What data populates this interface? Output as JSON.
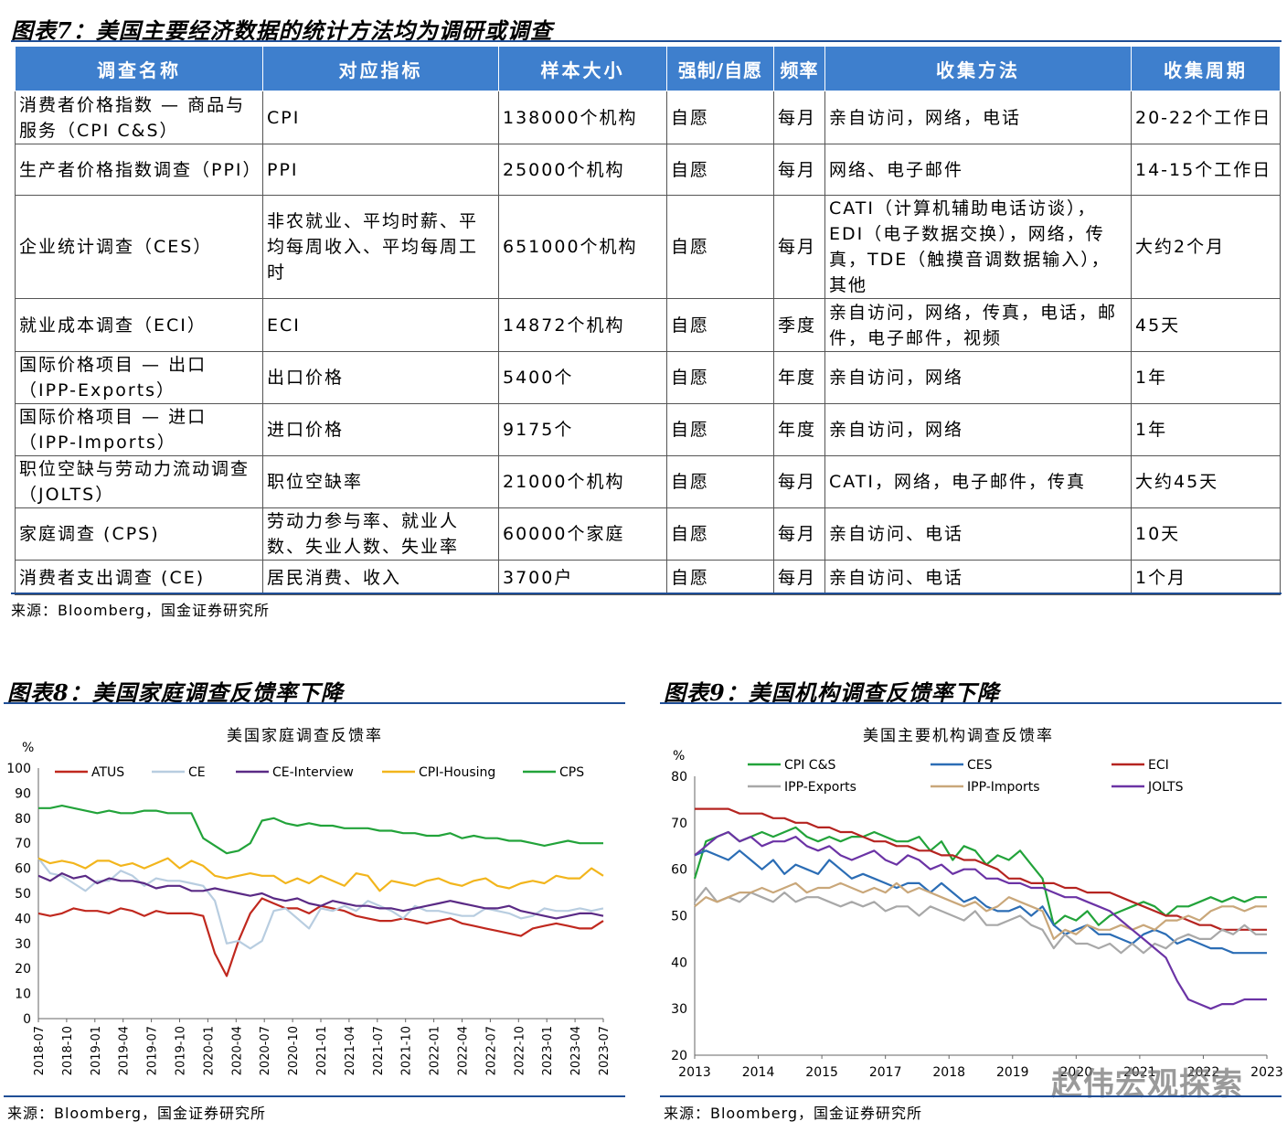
{
  "table_section": {
    "title": "图表7：美国主要经济数据的统计方法均为调研或调查",
    "headers": [
      "调查名称",
      "对应指标",
      "样本大小",
      "强制/自愿",
      "频率",
      "收集方法",
      "收集周期"
    ],
    "rows": [
      [
        "消费者价格指数 — 商品与服务（CPI C&S）",
        "CPI",
        "138000个机构",
        "自愿",
        "每月",
        "亲自访问，网络，电话",
        "20-22个工作日"
      ],
      [
        "生产者价格指数调查（PPI）",
        "PPI",
        "25000个机构",
        "自愿",
        "每月",
        "网络、电子邮件",
        "14-15个工作日"
      ],
      [
        "企业统计调查（CES）",
        "非农就业、平均时薪、平均每周收入、平均每周工时",
        "651000个机构",
        "自愿",
        "每月",
        "CATI（计算机辅助电话访谈），EDI（电子数据交换），网络，传真，TDE（触摸音调数据输入），其他",
        "大约2个月"
      ],
      [
        "就业成本调查（ECI）",
        "ECI",
        "14872个机构",
        "自愿",
        "季度",
        "亲自访问，网络，传真，电话，邮件，电子邮件，视频",
        "45天"
      ],
      [
        "国际价格项目 — 出口（IPP-Exports）",
        "出口价格",
        "5400个",
        "自愿",
        "年度",
        "亲自访问，网络",
        "1年"
      ],
      [
        "国际价格项目 — 进口（IPP-Imports）",
        "进口价格",
        "9175个",
        "自愿",
        "年度",
        "亲自访问，网络",
        "1年"
      ],
      [
        "职位空缺与劳动力流动调查（JOLTS）",
        "职位空缺率",
        "21000个机构",
        "自愿",
        "每月",
        "CATI，网络，电子邮件，传真",
        "大约45天"
      ],
      [
        "家庭调查 (CPS)",
        "劳动力参与率、就业人数、失业人数、失业率",
        "60000个家庭",
        "自愿",
        "每月",
        "亲自访问、电话",
        "10天"
      ],
      [
        "消费者支出调查 (CE)",
        "居民消费、收入",
        "3700户",
        "自愿",
        "每月",
        "亲自访问、电话",
        "1个月"
      ]
    ],
    "source": "来源：Bloomberg，国金证券研究所"
  },
  "left_section": {
    "title": "图表8：美国家庭调查反馈率下降",
    "source": "来源：Bloomberg，国金证券研究所"
  },
  "right_section": {
    "title": "图表9：美国机构调查反馈率下降",
    "source": "来源：Bloomberg，国金证券研究所"
  },
  "watermark": "赵伟宏观探索",
  "chart_data": [
    {
      "type": "line",
      "title": "美国家庭调查反馈率",
      "ylabel": "%",
      "ylim": [
        0,
        100
      ],
      "yticks": [
        0,
        10,
        20,
        30,
        40,
        50,
        60,
        70,
        80,
        90,
        100
      ],
      "x_tick_labels": [
        "2018-07",
        "2018-10",
        "2019-01",
        "2019-04",
        "2019-07",
        "2019-10",
        "2020-01",
        "2020-04",
        "2020-07",
        "2020-10",
        "2021-01",
        "2021-04",
        "2021-07",
        "2021-10",
        "2022-01",
        "2022-04",
        "2022-07",
        "2022-10",
        "2023-01",
        "2023-04",
        "2023-07"
      ],
      "legend": "top",
      "series": [
        {
          "name": "ATUS",
          "color": "#c0281e",
          "values": [
            42,
            41,
            42,
            44,
            43,
            43,
            42,
            44,
            43,
            41,
            43,
            42,
            42,
            42,
            41,
            26,
            17,
            31,
            42,
            48,
            46,
            44,
            44,
            42,
            45,
            44,
            43,
            41,
            40,
            39,
            39,
            40,
            39,
            38,
            39,
            40,
            38,
            37,
            36,
            35,
            34,
            33,
            36,
            37,
            38,
            37,
            36,
            36,
            39
          ]
        },
        {
          "name": "CE",
          "color": "#b8cde0",
          "values": [
            64,
            58,
            57,
            54,
            51,
            55,
            55,
            59,
            57,
            53,
            56,
            55,
            55,
            54,
            53,
            47,
            30,
            31,
            28,
            31,
            43,
            44,
            40,
            36,
            44,
            43,
            45,
            43,
            47,
            45,
            43,
            40,
            45,
            43,
            43,
            42,
            41,
            41,
            44,
            43,
            42,
            40,
            41,
            44,
            43,
            43,
            44,
            43,
            44
          ]
        },
        {
          "name": "CE-Interview",
          "color": "#5a2a85",
          "values": [
            57,
            55,
            58,
            56,
            57,
            54,
            56,
            55,
            55,
            54,
            52,
            53,
            53,
            51,
            51,
            52,
            51,
            50,
            49,
            50,
            48,
            47,
            48,
            46,
            45,
            47,
            46,
            45,
            45,
            44,
            44,
            43,
            44,
            45,
            46,
            47,
            46,
            45,
            44,
            44,
            45,
            43,
            42,
            41,
            40,
            41,
            42,
            42,
            41
          ]
        },
        {
          "name": "CPI-Housing",
          "color": "#f2b51c",
          "values": [
            64,
            62,
            63,
            62,
            60,
            63,
            63,
            61,
            62,
            60,
            62,
            64,
            60,
            63,
            61,
            57,
            56,
            57,
            58,
            57,
            57,
            54,
            56,
            54,
            57,
            55,
            53,
            58,
            57,
            51,
            55,
            54,
            53,
            55,
            56,
            54,
            53,
            55,
            56,
            53,
            52,
            54,
            55,
            54,
            57,
            56,
            56,
            60,
            57
          ]
        },
        {
          "name": "CPS",
          "color": "#22a33a",
          "values": [
            84,
            84,
            85,
            84,
            83,
            82,
            83,
            82,
            82,
            83,
            83,
            82,
            82,
            82,
            72,
            69,
            66,
            67,
            70,
            79,
            80,
            78,
            77,
            78,
            77,
            77,
            76,
            76,
            76,
            75,
            75,
            74,
            74,
            73,
            73,
            74,
            72,
            73,
            72,
            72,
            71,
            71,
            70,
            69,
            70,
            71,
            70,
            70,
            70
          ]
        }
      ]
    },
    {
      "type": "line",
      "title": "美国主要机构调查反馈率",
      "ylabel": "%",
      "ylim": [
        20,
        80
      ],
      "yticks": [
        20,
        30,
        40,
        50,
        60,
        70,
        80
      ],
      "x_tick_labels": [
        "2013",
        "2014",
        "2015",
        "2017",
        "2018",
        "2019",
        "2020",
        "2021",
        "2022",
        "2023"
      ],
      "legend": "top",
      "series": [
        {
          "name": "CPI C&S",
          "color": "#22a33a",
          "values": [
            58,
            66,
            67,
            68,
            66,
            67,
            68,
            67,
            68,
            69,
            67,
            66,
            67,
            66,
            67,
            67,
            68,
            67,
            66,
            66,
            67,
            64,
            66,
            62,
            65,
            64,
            61,
            63,
            62,
            64,
            61,
            58,
            48,
            50,
            49,
            51,
            48,
            50,
            51,
            52,
            53,
            52,
            50,
            52,
            52,
            53,
            54,
            53,
            54,
            53,
            54,
            54
          ]
        },
        {
          "name": "CES",
          "color": "#2b6db5",
          "values": [
            63,
            64,
            63,
            62,
            64,
            62,
            60,
            62,
            59,
            61,
            60,
            59,
            62,
            60,
            58,
            59,
            58,
            57,
            56,
            57,
            57,
            55,
            57,
            55,
            53,
            54,
            52,
            51,
            51,
            52,
            50,
            52,
            48,
            46,
            47,
            48,
            46,
            46,
            45,
            44,
            46,
            47,
            46,
            44,
            45,
            44,
            43,
            43,
            42,
            42,
            42,
            42
          ]
        },
        {
          "name": "ECI",
          "color": "#b52420",
          "values": [
            73,
            73,
            73,
            73,
            72,
            72,
            72,
            71,
            71,
            70,
            70,
            69,
            69,
            68,
            68,
            67,
            66,
            66,
            65,
            65,
            64,
            64,
            63,
            63,
            62,
            62,
            61,
            60,
            58,
            58,
            57,
            57,
            57,
            56,
            56,
            55,
            55,
            55,
            54,
            53,
            52,
            51,
            50,
            50,
            49,
            48,
            48,
            47,
            47,
            47,
            47,
            47
          ]
        },
        {
          "name": "IPP-Exports",
          "color": "#a8a8a8",
          "values": [
            53,
            56,
            53,
            54,
            53,
            55,
            54,
            53,
            55,
            53,
            54,
            54,
            53,
            52,
            53,
            52,
            53,
            51,
            52,
            52,
            50,
            52,
            51,
            50,
            49,
            51,
            48,
            48,
            49,
            50,
            48,
            47,
            43,
            46,
            44,
            44,
            43,
            44,
            42,
            44,
            42,
            44,
            43,
            45,
            46,
            45,
            45,
            47,
            46,
            48,
            46,
            46
          ]
        },
        {
          "name": "IPP-Imports",
          "color": "#c9a77a",
          "values": [
            52,
            54,
            53,
            54,
            55,
            55,
            56,
            55,
            56,
            57,
            55,
            56,
            56,
            57,
            56,
            55,
            56,
            55,
            57,
            55,
            56,
            55,
            54,
            53,
            52,
            53,
            51,
            52,
            54,
            53,
            52,
            51,
            45,
            47,
            46,
            48,
            47,
            47,
            48,
            47,
            48,
            47,
            49,
            49,
            50,
            49,
            51,
            52,
            52,
            51,
            52,
            52
          ]
        },
        {
          "name": "JOLTS",
          "color": "#6b33a5",
          "values": [
            63,
            65,
            67,
            68,
            66,
            67,
            65,
            66,
            66,
            67,
            65,
            64,
            65,
            63,
            62,
            63,
            64,
            62,
            61,
            63,
            62,
            60,
            61,
            59,
            60,
            60,
            58,
            58,
            57,
            57,
            56,
            56,
            55,
            54,
            54,
            53,
            52,
            51,
            49,
            47,
            45,
            43,
            41,
            36,
            32,
            31,
            30,
            31,
            31,
            32,
            32,
            32
          ]
        }
      ]
    }
  ]
}
